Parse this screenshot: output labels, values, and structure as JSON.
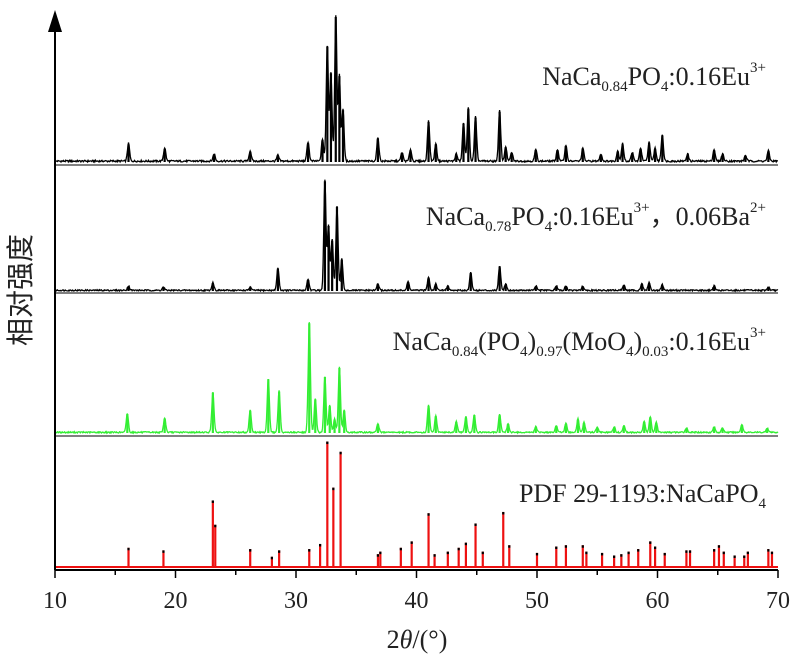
{
  "chart_data": {
    "type": "line",
    "xlabel_parts": [
      {
        "t": "2",
        "s": "normal"
      },
      {
        "t": "θ",
        "s": "italic"
      },
      {
        "t": "/(°)",
        "s": "normal"
      }
    ],
    "ylabel": "相对强度",
    "xlim": [
      10,
      70
    ],
    "x_ticks": [
      10,
      20,
      30,
      40,
      50,
      60,
      70
    ],
    "grid": false,
    "series": [
      {
        "name": "NaCa0.84PO4:0.16Eu3+",
        "label_parts": [
          {
            "t": "NaCa",
            "p": "normal"
          },
          {
            "t": "0.84",
            "p": "sub"
          },
          {
            "t": "PO",
            "p": "normal"
          },
          {
            "t": "4",
            "p": "sub"
          },
          {
            "t": ":0.16Eu",
            "p": "normal"
          },
          {
            "t": "3+",
            "p": "sup"
          }
        ],
        "color": "#000000",
        "style": "profile",
        "peaks": [
          [
            16.1,
            0.12
          ],
          [
            19.1,
            0.09
          ],
          [
            23.2,
            0.05
          ],
          [
            26.2,
            0.07
          ],
          [
            28.5,
            0.04
          ],
          [
            31.0,
            0.13
          ],
          [
            32.2,
            0.15
          ],
          [
            32.6,
            0.78
          ],
          [
            32.9,
            0.6
          ],
          [
            33.3,
            0.98
          ],
          [
            33.6,
            0.58
          ],
          [
            33.9,
            0.35
          ],
          [
            36.8,
            0.16
          ],
          [
            38.8,
            0.06
          ],
          [
            39.5,
            0.08
          ],
          [
            41.0,
            0.27
          ],
          [
            41.6,
            0.12
          ],
          [
            43.3,
            0.05
          ],
          [
            43.9,
            0.26
          ],
          [
            44.3,
            0.36
          ],
          [
            44.9,
            0.3
          ],
          [
            46.9,
            0.34
          ],
          [
            47.4,
            0.1
          ],
          [
            47.9,
            0.06
          ],
          [
            49.9,
            0.08
          ],
          [
            51.7,
            0.08
          ],
          [
            52.4,
            0.11
          ],
          [
            53.8,
            0.09
          ],
          [
            55.3,
            0.05
          ],
          [
            56.7,
            0.07
          ],
          [
            57.1,
            0.12
          ],
          [
            57.9,
            0.06
          ],
          [
            58.6,
            0.09
          ],
          [
            59.3,
            0.13
          ],
          [
            59.8,
            0.09
          ],
          [
            60.4,
            0.18
          ],
          [
            62.5,
            0.05
          ],
          [
            64.7,
            0.08
          ],
          [
            65.4,
            0.05
          ],
          [
            67.3,
            0.04
          ],
          [
            69.2,
            0.07
          ]
        ]
      },
      {
        "name": "NaCa0.78PO4:0.16Eu3+, 0.06Ba2+",
        "label_parts": [
          {
            "t": "NaCa",
            "p": "normal"
          },
          {
            "t": "0.78",
            "p": "sub"
          },
          {
            "t": "PO",
            "p": "normal"
          },
          {
            "t": "4",
            "p": "sub"
          },
          {
            "t": ":0.16Eu",
            "p": "normal"
          },
          {
            "t": "3+",
            "p": "sup"
          },
          {
            "t": "，0.06Ba",
            "p": "normal"
          },
          {
            "t": "2+",
            "p": "sup"
          }
        ],
        "color": "#000000",
        "style": "profile",
        "peaks": [
          [
            16.1,
            0.04
          ],
          [
            19.0,
            0.03
          ],
          [
            23.1,
            0.07
          ],
          [
            26.2,
            0.03
          ],
          [
            28.5,
            0.2
          ],
          [
            31.0,
            0.1
          ],
          [
            32.4,
            0.98
          ],
          [
            32.7,
            0.58
          ],
          [
            33.0,
            0.45
          ],
          [
            33.4,
            0.75
          ],
          [
            33.8,
            0.28
          ],
          [
            36.8,
            0.06
          ],
          [
            39.3,
            0.08
          ],
          [
            41.0,
            0.12
          ],
          [
            41.6,
            0.06
          ],
          [
            42.6,
            0.04
          ],
          [
            44.5,
            0.16
          ],
          [
            46.9,
            0.22
          ],
          [
            47.4,
            0.06
          ],
          [
            49.9,
            0.04
          ],
          [
            51.6,
            0.04
          ],
          [
            52.4,
            0.04
          ],
          [
            53.8,
            0.04
          ],
          [
            57.2,
            0.05
          ],
          [
            58.7,
            0.06
          ],
          [
            59.3,
            0.07
          ],
          [
            60.4,
            0.05
          ],
          [
            64.7,
            0.04
          ],
          [
            69.2,
            0.03
          ]
        ]
      },
      {
        "name": "NaCa0.84(PO4)0.97(MoO4)0.03:0.16Eu3+",
        "label_parts": [
          {
            "t": "NaCa",
            "p": "normal"
          },
          {
            "t": "0.84",
            "p": "sub"
          },
          {
            "t": "(PO",
            "p": "normal"
          },
          {
            "t": "4",
            "p": "sub"
          },
          {
            "t": ")",
            "p": "normal"
          },
          {
            "t": "0.97",
            "p": "sub"
          },
          {
            "t": "(MoO",
            "p": "normal"
          },
          {
            "t": "4",
            "p": "sub"
          },
          {
            "t": ")",
            "p": "normal"
          },
          {
            "t": "0.03",
            "p": "sub"
          },
          {
            "t": ":0.16Eu",
            "p": "normal"
          },
          {
            "t": "3+",
            "p": "sup"
          }
        ],
        "color": "#33ee33",
        "style": "profile",
        "peaks": [
          [
            16.0,
            0.17
          ],
          [
            19.1,
            0.13
          ],
          [
            23.1,
            0.36
          ],
          [
            26.2,
            0.2
          ],
          [
            27.7,
            0.48
          ],
          [
            28.6,
            0.37
          ],
          [
            31.1,
            0.98
          ],
          [
            31.6,
            0.3
          ],
          [
            32.4,
            0.5
          ],
          [
            32.8,
            0.24
          ],
          [
            33.2,
            0.12
          ],
          [
            33.6,
            0.58
          ],
          [
            34.0,
            0.2
          ],
          [
            36.8,
            0.08
          ],
          [
            41.0,
            0.24
          ],
          [
            41.6,
            0.15
          ],
          [
            43.3,
            0.1
          ],
          [
            44.1,
            0.14
          ],
          [
            44.8,
            0.16
          ],
          [
            46.9,
            0.16
          ],
          [
            47.6,
            0.08
          ],
          [
            49.9,
            0.05
          ],
          [
            51.6,
            0.06
          ],
          [
            52.4,
            0.08
          ],
          [
            53.4,
            0.12
          ],
          [
            53.9,
            0.09
          ],
          [
            55.0,
            0.05
          ],
          [
            56.4,
            0.05
          ],
          [
            57.2,
            0.06
          ],
          [
            58.9,
            0.1
          ],
          [
            59.4,
            0.14
          ],
          [
            59.9,
            0.09
          ],
          [
            62.4,
            0.04
          ],
          [
            64.7,
            0.05
          ],
          [
            65.4,
            0.04
          ],
          [
            67.0,
            0.07
          ],
          [
            69.1,
            0.04
          ]
        ]
      },
      {
        "name": "PDF 29-1193:NaCaPO4",
        "label_parts": [
          {
            "t": "PDF 29-1193:NaCaPO",
            "p": "normal"
          },
          {
            "t": "4",
            "p": "sub"
          }
        ],
        "color": "#ee1111",
        "style": "stick",
        "peaks": [
          [
            16.1,
            0.15
          ],
          [
            19.0,
            0.13
          ],
          [
            23.1,
            0.52
          ],
          [
            23.3,
            0.33
          ],
          [
            26.2,
            0.14
          ],
          [
            28.0,
            0.08
          ],
          [
            28.6,
            0.13
          ],
          [
            31.1,
            0.14
          ],
          [
            32.0,
            0.18
          ],
          [
            32.6,
            0.98
          ],
          [
            33.1,
            0.62
          ],
          [
            33.7,
            0.9
          ],
          [
            36.8,
            0.1
          ],
          [
            37.0,
            0.12
          ],
          [
            38.7,
            0.15
          ],
          [
            39.6,
            0.2
          ],
          [
            41.0,
            0.42
          ],
          [
            41.5,
            0.1
          ],
          [
            42.6,
            0.12
          ],
          [
            43.5,
            0.15
          ],
          [
            44.1,
            0.19
          ],
          [
            44.9,
            0.34
          ],
          [
            45.5,
            0.12
          ],
          [
            47.2,
            0.43
          ],
          [
            47.7,
            0.17
          ],
          [
            50.0,
            0.11
          ],
          [
            51.6,
            0.16
          ],
          [
            52.4,
            0.17
          ],
          [
            53.8,
            0.17
          ],
          [
            54.1,
            0.12
          ],
          [
            55.4,
            0.11
          ],
          [
            56.4,
            0.09
          ],
          [
            57.0,
            0.1
          ],
          [
            57.6,
            0.12
          ],
          [
            58.4,
            0.14
          ],
          [
            59.4,
            0.2
          ],
          [
            59.8,
            0.16
          ],
          [
            60.6,
            0.11
          ],
          [
            62.4,
            0.13
          ],
          [
            62.7,
            0.13
          ],
          [
            64.7,
            0.14
          ],
          [
            65.1,
            0.17
          ],
          [
            65.5,
            0.12
          ],
          [
            66.4,
            0.09
          ],
          [
            67.2,
            0.09
          ],
          [
            67.5,
            0.12
          ],
          [
            69.2,
            0.14
          ],
          [
            69.5,
            0.12
          ]
        ]
      }
    ]
  }
}
